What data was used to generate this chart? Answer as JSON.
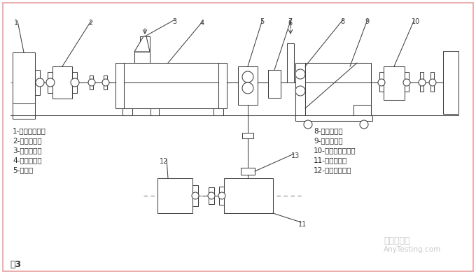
{
  "bg_color": "#ffffff",
  "border_color": "#e8a0a0",
  "line_color": "#404040",
  "dash_color": "#888888",
  "title": "图3",
  "watermark1": "嘉峪检测网",
  "watermark2": "AnyTesting.com",
  "labels_left": [
    "1-混炼机主电机",
    "2-齿轮减速器",
    "3-粉末下料器",
    "4-双螺杆筒体",
    "5-齿轮泵"
  ],
  "labels_right": [
    "8-颗粒水出口",
    "9-水下切粒机",
    "10-水下切粒电动机",
    "11-同步齿轮箱",
    "12-齿轮泵电动机"
  ]
}
